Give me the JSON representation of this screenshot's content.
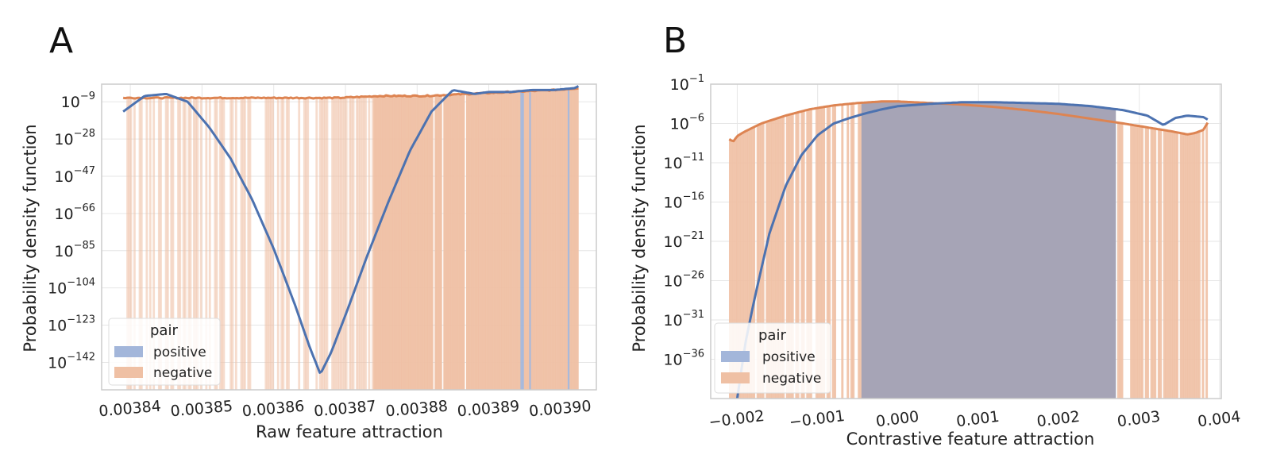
{
  "colors": {
    "positive": "#4c72b0",
    "negative": "#dd8452",
    "positive_fill": "#a3b6da",
    "negative_fill": "#efc0a4",
    "overlap_fill": "#a6a4b6",
    "grid": "#e6e6e6",
    "frame": "#cccccc"
  },
  "chart_data": [
    {
      "panel": "A",
      "type": "area",
      "xlabel": "Raw feature attraction",
      "ylabel": "Probability density function",
      "yscale": "log",
      "xlim": [
        0.003836,
        0.003905
      ],
      "ylim_exp": [
        -156,
        0
      ],
      "xticks": [
        0.00384,
        0.00385,
        0.00386,
        0.00387,
        0.00388,
        0.00389,
        0.0039
      ],
      "xtick_labels": [
        "0.00384",
        "0.00385",
        "0.00386",
        "0.00387",
        "0.00388",
        "0.00389",
        "0.00390"
      ],
      "yticks_exp": [
        -9,
        -28,
        -47,
        -66,
        -85,
        -104,
        -123,
        -142
      ],
      "legend": {
        "title": "pair",
        "position": "lower-left",
        "entries": [
          "positive",
          "negative"
        ]
      },
      "series": [
        {
          "name": "positive",
          "x": [
            0.003839,
            0.003842,
            0.003845,
            0.003848,
            0.003851,
            0.003854,
            0.003857,
            0.00386,
            0.003863,
            0.003865,
            0.0038665,
            0.003868,
            0.00387,
            0.003873,
            0.003876,
            0.003879,
            0.003882,
            0.003885,
            0.003888,
            0.00389,
            0.003893,
            0.003896,
            0.003899,
            0.003902,
            0.0039025
          ],
          "log10": [
            -14,
            -6,
            -5,
            -9,
            -22,
            -38,
            -59,
            -84,
            -113,
            -134,
            -148,
            -137,
            -118,
            -88,
            -60,
            -34,
            -14,
            -3,
            -5,
            -4,
            -4,
            -3,
            -3,
            -2,
            -1
          ]
        },
        {
          "name": "negative",
          "x": [
            0.003839,
            0.003845,
            0.003851,
            0.003857,
            0.003863,
            0.003869,
            0.003875,
            0.003881,
            0.003887,
            0.003893,
            0.003899,
            0.0039025
          ],
          "log10": [
            -7,
            -7,
            -7,
            -7,
            -7,
            -7,
            -6,
            -6,
            -5,
            -4,
            -3,
            -2
          ]
        }
      ]
    },
    {
      "panel": "B",
      "type": "area",
      "xlabel": "Contrastive feature attraction",
      "ylabel": "Probability density function",
      "yscale": "log",
      "xlim": [
        -0.00233,
        0.00402
      ],
      "ylim_exp": [
        -41,
        -1
      ],
      "xticks": [
        -0.002,
        -0.001,
        0.0,
        0.001,
        0.002,
        0.003,
        0.004
      ],
      "xtick_labels": [
        "−0.002",
        "−0.001",
        "0.000",
        "0.001",
        "0.002",
        "0.003",
        "0.004"
      ],
      "yticks_exp": [
        -1,
        -6,
        -11,
        -16,
        -21,
        -26,
        -31,
        -36
      ],
      "legend": {
        "title": "pair",
        "position": "lower-left",
        "entries": [
          "positive",
          "negative"
        ]
      },
      "series": [
        {
          "name": "positive",
          "x": [
            -0.002,
            -0.0019,
            -0.0018,
            -0.0016,
            -0.0014,
            -0.0012,
            -0.001,
            -0.0008,
            -0.0006,
            -0.0004,
            -0.0002,
            0.0,
            0.0004,
            0.0008,
            0.0012,
            0.0016,
            0.002,
            0.0024,
            0.0028,
            0.0031,
            0.0033,
            0.00345,
            0.0036,
            0.0038,
            0.00385
          ],
          "log10": [
            -41,
            -34,
            -29,
            -20,
            -14,
            -10,
            -7.5,
            -6,
            -5.3,
            -4.7,
            -4.2,
            -3.8,
            -3.5,
            -3.3,
            -3.3,
            -3.4,
            -3.5,
            -3.8,
            -4.3,
            -5,
            -6.2,
            -5.3,
            -5,
            -5.2,
            -5.5
          ]
        },
        {
          "name": "negative",
          "x": [
            -0.0021,
            -0.00205,
            -0.002,
            -0.0019,
            -0.0017,
            -0.0014,
            -0.0011,
            -0.0008,
            -0.0005,
            -0.0002,
            0.0,
            0.0004,
            0.0008,
            0.0012,
            0.0016,
            0.002,
            0.0024,
            0.0028,
            0.0031,
            0.0034,
            0.0036,
            0.0037,
            0.0038,
            0.00385
          ],
          "log10": [
            -8,
            -8.3,
            -7.6,
            -7,
            -6,
            -5,
            -4.2,
            -3.7,
            -3.4,
            -3.2,
            -3.2,
            -3.4,
            -3.6,
            -3.9,
            -4.3,
            -4.8,
            -5.4,
            -6,
            -6.5,
            -7,
            -7.4,
            -7.2,
            -6.8,
            -5.9
          ]
        }
      ]
    }
  ]
}
